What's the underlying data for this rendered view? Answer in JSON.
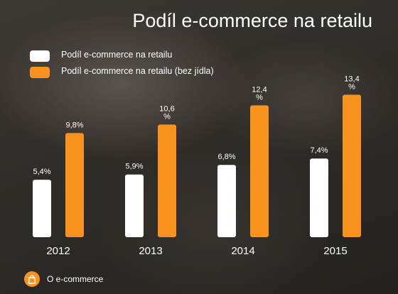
{
  "chart_data": {
    "type": "bar",
    "title": "Podíl e-commerce na retailu",
    "categories": [
      "2012",
      "2013",
      "2014",
      "2015"
    ],
    "series": [
      {
        "name": "Podíl e-commerce na retailu",
        "values": [
          5.4,
          5.9,
          6.8,
          7.4
        ],
        "labels": [
          "5,4%",
          "5,9%",
          "6,8%",
          "7,4%"
        ],
        "color": "#ffffff"
      },
      {
        "name": "Podíl e-commerce na retailu (bez jídla)",
        "values": [
          9.8,
          10.6,
          12.4,
          13.4
        ],
        "labels": [
          "9,8%",
          "10,6\n%",
          "12,4\n%",
          "13,4\n%"
        ],
        "color": "#f7931e"
      }
    ],
    "legend_position": "top-left",
    "grid": false,
    "ylim": [
      0,
      15.5
    ]
  },
  "footer": {
    "text": "O e-commerce",
    "icon": "shopping-bag-icon",
    "icon_color": "#f7931e"
  }
}
